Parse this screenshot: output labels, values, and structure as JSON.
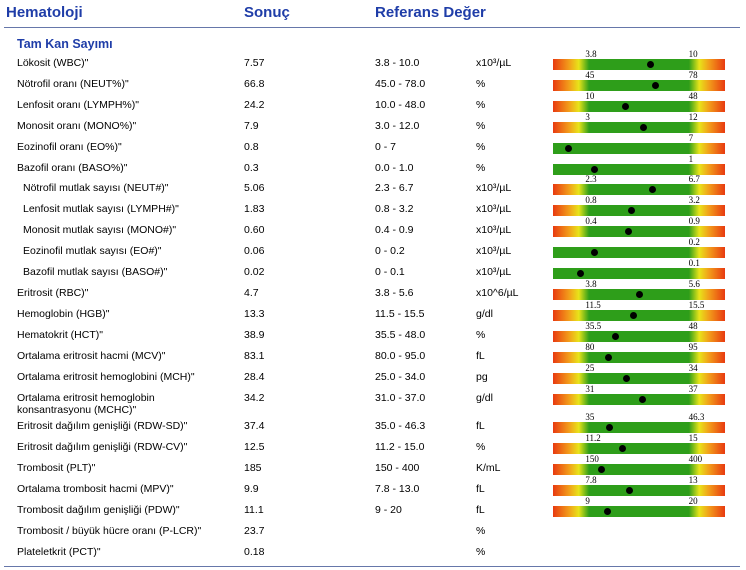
{
  "header": {
    "col_test": "Hematoloji",
    "col_result": "Sonuç",
    "col_ref": "Referans Değer"
  },
  "section_title": "Tam Kan Sayımı",
  "rows": [
    {
      "name": "Lökosit (WBC)\"",
      "result": "7.57",
      "ref": "3.8 - 10.0",
      "unit": "x10³/µL",
      "low": "3.8",
      "high": "10",
      "value": 7.57,
      "min": 3.8,
      "max": 10,
      "gauge": "normal"
    },
    {
      "name": "Nötrofil oranı (NEUT%)\"",
      "result": "66.8",
      "ref": "45.0 - 78.0",
      "unit": "%",
      "low": "45",
      "high": "78",
      "value": 66.8,
      "min": 45,
      "max": 78,
      "gauge": "normal"
    },
    {
      "name": "Lenfosit oranı (LYMPH%)\"",
      "result": "24.2",
      "ref": "10.0 - 48.0",
      "unit": "%",
      "low": "10",
      "high": "48",
      "value": 24.2,
      "min": 10,
      "max": 48,
      "gauge": "normal"
    },
    {
      "name": "Monosit oranı (MONO%)\"",
      "result": "7.9",
      "ref": "3.0 - 12.0",
      "unit": "%",
      "low": "3",
      "high": "12",
      "value": 7.9,
      "min": 3,
      "max": 12,
      "gauge": "normal"
    },
    {
      "name": "Eozinofil oranı (EO%)\"",
      "result": "0.8",
      "ref": "0 - 7",
      "unit": "%",
      "low": "",
      "high": "7",
      "value": 0.8,
      "min": 0,
      "max": 7,
      "gauge": "zero"
    },
    {
      "name": "Bazofil oranı (BASO%)\"",
      "result": "0.3",
      "ref": "0.0 - 1.0",
      "unit": "%",
      "low": "",
      "high": "1",
      "value": 0.3,
      "min": 0,
      "max": 1,
      "gauge": "zero"
    },
    {
      "name": "Nötrofil mutlak sayısı (NEUT#)\"",
      "result": "5.06",
      "ref": "2.3 - 6.7",
      "unit": "x10³/µL",
      "low": "2.3",
      "high": "6.7",
      "value": 5.06,
      "min": 2.3,
      "max": 6.7,
      "gauge": "normal",
      "indent": true
    },
    {
      "name": "Lenfosit mutlak sayısı (LYMPH#)\"",
      "result": "1.83",
      "ref": "0.8 - 3.2",
      "unit": "x10³/µL",
      "low": "0.8",
      "high": "3.2",
      "value": 1.83,
      "min": 0.8,
      "max": 3.2,
      "gauge": "normal",
      "indent": true
    },
    {
      "name": "Monosit mutlak sayısı (MONO#)\"",
      "result": "0.60",
      "ref": "0.4 - 0.9",
      "unit": "x10³/µL",
      "low": "0.4",
      "high": "0.9",
      "value": 0.6,
      "min": 0.4,
      "max": 0.9,
      "gauge": "normal",
      "indent": true
    },
    {
      "name": "Eozinofil mutlak sayısı (EO#)\"",
      "result": "0.06",
      "ref": "0 - 0.2",
      "unit": "x10³/µL",
      "low": "",
      "high": "0.2",
      "value": 0.06,
      "min": 0,
      "max": 0.2,
      "gauge": "zero",
      "indent": true
    },
    {
      "name": "Bazofil mutlak sayısı (BASO#)\"",
      "result": "0.02",
      "ref": "0 - 0.1",
      "unit": "x10³/µL",
      "low": "",
      "high": "0.1",
      "value": 0.02,
      "min": 0,
      "max": 0.1,
      "gauge": "zero",
      "indent": true
    },
    {
      "name": "Eritrosit (RBC)\"",
      "result": "4.7",
      "ref": "3.8 - 5.6",
      "unit": "x10^6/µL",
      "low": "3.8",
      "high": "5.6",
      "value": 4.7,
      "min": 3.8,
      "max": 5.6,
      "gauge": "normal"
    },
    {
      "name": "Hemoglobin (HGB)\"",
      "result": "13.3",
      "ref": "11.5 - 15.5",
      "unit": "g/dl",
      "low": "11.5",
      "high": "15.5",
      "value": 13.3,
      "min": 11.5,
      "max": 15.5,
      "gauge": "normal"
    },
    {
      "name": "Hematokrit (HCT)\"",
      "result": "38.9",
      "ref": "35.5 - 48.0",
      "unit": "%",
      "low": "35.5",
      "high": "48",
      "value": 38.9,
      "min": 35.5,
      "max": 48,
      "gauge": "normal"
    },
    {
      "name": "Ortalama eritrosit hacmi (MCV)\"",
      "result": "83.1",
      "ref": "80.0 - 95.0",
      "unit": "fL",
      "low": "80",
      "high": "95",
      "value": 83.1,
      "min": 80,
      "max": 95,
      "gauge": "normal"
    },
    {
      "name": "Ortalama eritrosit hemoglobini (MCH)\"",
      "result": "28.4",
      "ref": "25.0 - 34.0",
      "unit": "pg",
      "low": "25",
      "high": "34",
      "value": 28.4,
      "min": 25,
      "max": 34,
      "gauge": "normal"
    },
    {
      "name": "Ortalama eritrosit hemoglobin",
      "name2": "konsantrasyonu (MCHC)\"",
      "result": "34.2",
      "ref": "31.0 - 37.0",
      "unit": "g/dl",
      "low": "31",
      "high": "37",
      "value": 34.2,
      "min": 31,
      "max": 37,
      "gauge": "normal"
    },
    {
      "name": "Eritrosit dağılım genişliği (RDW-SD)\"",
      "result": "37.4",
      "ref": "35.0 - 46.3",
      "unit": "fL",
      "low": "35",
      "high": "46.3",
      "value": 37.4,
      "min": 35,
      "max": 46.3,
      "gauge": "normal"
    },
    {
      "name": "Eritrosit dağılım genişliği (RDW-CV)\"",
      "result": "12.5",
      "ref": "11.2 - 15.0",
      "unit": "%",
      "low": "11.2",
      "high": "15",
      "value": 12.5,
      "min": 11.2,
      "max": 15,
      "gauge": "normal"
    },
    {
      "name": "Trombosit (PLT)\"",
      "result": "185",
      "ref": "150 - 400",
      "unit": "K/mL",
      "low": "150",
      "high": "400",
      "value": 185,
      "min": 150,
      "max": 400,
      "gauge": "normal"
    },
    {
      "name": "Ortalama trombosit hacmi (MPV)\"",
      "result": "9.9",
      "ref": "7.8 - 13.0",
      "unit": "fL",
      "low": "7.8",
      "high": "13",
      "value": 9.9,
      "min": 7.8,
      "max": 13,
      "gauge": "normal"
    },
    {
      "name": "Trombosit dağılım genişliği (PDW)\"",
      "result": "11.1",
      "ref": "9 -  20",
      "unit": "fL",
      "low": "9",
      "high": "20",
      "value": 11.1,
      "min": 9,
      "max": 20,
      "gauge": "normal"
    },
    {
      "name": "Trombosit / büyük hücre oranı (P-LCR)\"",
      "result": "23.7",
      "ref": "",
      "unit": "%",
      "gauge": "none"
    },
    {
      "name": "Plateletkrit (PCT)\"",
      "result": "0.18",
      "ref": "",
      "unit": "%",
      "gauge": "none"
    }
  ],
  "colors": {
    "header_blue": "#1f3da8",
    "green": "#2e9e1a",
    "yellow": "#e8e41a",
    "orange": "#f29a1a",
    "red": "#e83a10"
  }
}
